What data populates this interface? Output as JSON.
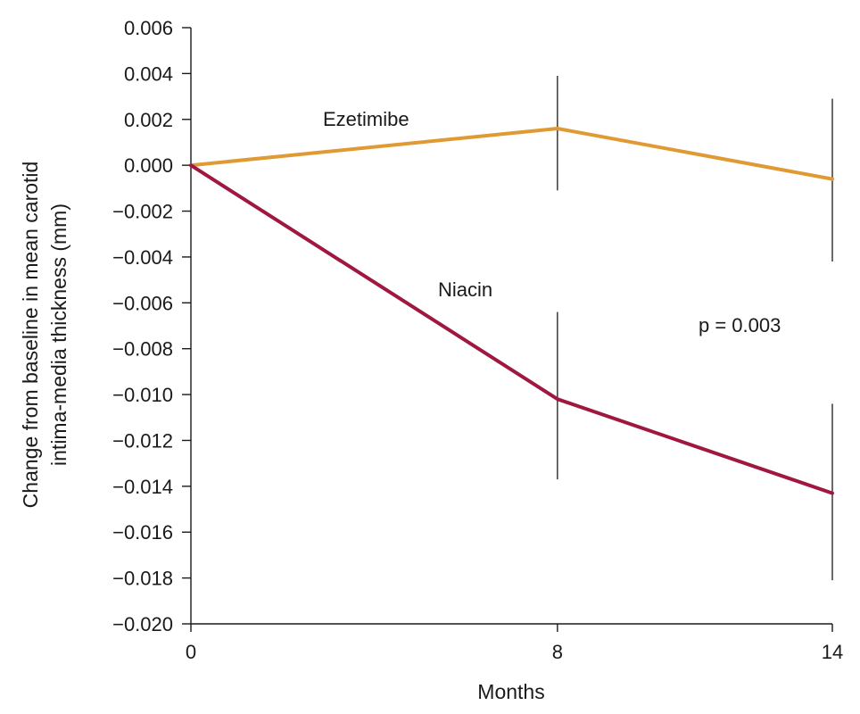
{
  "chart_data": {
    "type": "line",
    "title": "",
    "xlabel": "Months",
    "ylabel_lines": [
      "Change from baseline in mean carotid",
      "intima-media thickness (mm)"
    ],
    "x": [
      0,
      8,
      14
    ],
    "x_tick_labels": [
      "0",
      "8",
      "14"
    ],
    "ylim": [
      -0.02,
      0.006
    ],
    "y_ticks": [
      0.006,
      0.004,
      0.002,
      0.0,
      -0.002,
      -0.004,
      -0.006,
      -0.008,
      -0.01,
      -0.012,
      -0.014,
      -0.016,
      -0.018,
      -0.02
    ],
    "y_tick_labels": [
      "0.006",
      "0.004",
      "0.002",
      "0.000",
      "−0.002",
      "−0.004",
      "−0.006",
      "−0.008",
      "−0.010",
      "−0.012",
      "−0.014",
      "−0.016",
      "−0.018",
      "−0.020"
    ],
    "grid": false,
    "series": [
      {
        "name": "Ezetimibe",
        "color": "#E09A34",
        "values": [
          0.0,
          0.0016,
          -0.0006
        ],
        "error_bars": [
          null,
          [
            -0.0011,
            0.0039
          ],
          [
            -0.0042,
            0.0029
          ]
        ]
      },
      {
        "name": "Niacin",
        "color": "#A0173F",
        "values": [
          0.0,
          -0.0102,
          -0.0143
        ],
        "error_bars": [
          null,
          [
            -0.0137,
            -0.0064
          ],
          [
            -0.0181,
            -0.0104
          ]
        ]
      }
    ],
    "annotations": [
      {
        "text": "p = 0.003"
      }
    ]
  }
}
